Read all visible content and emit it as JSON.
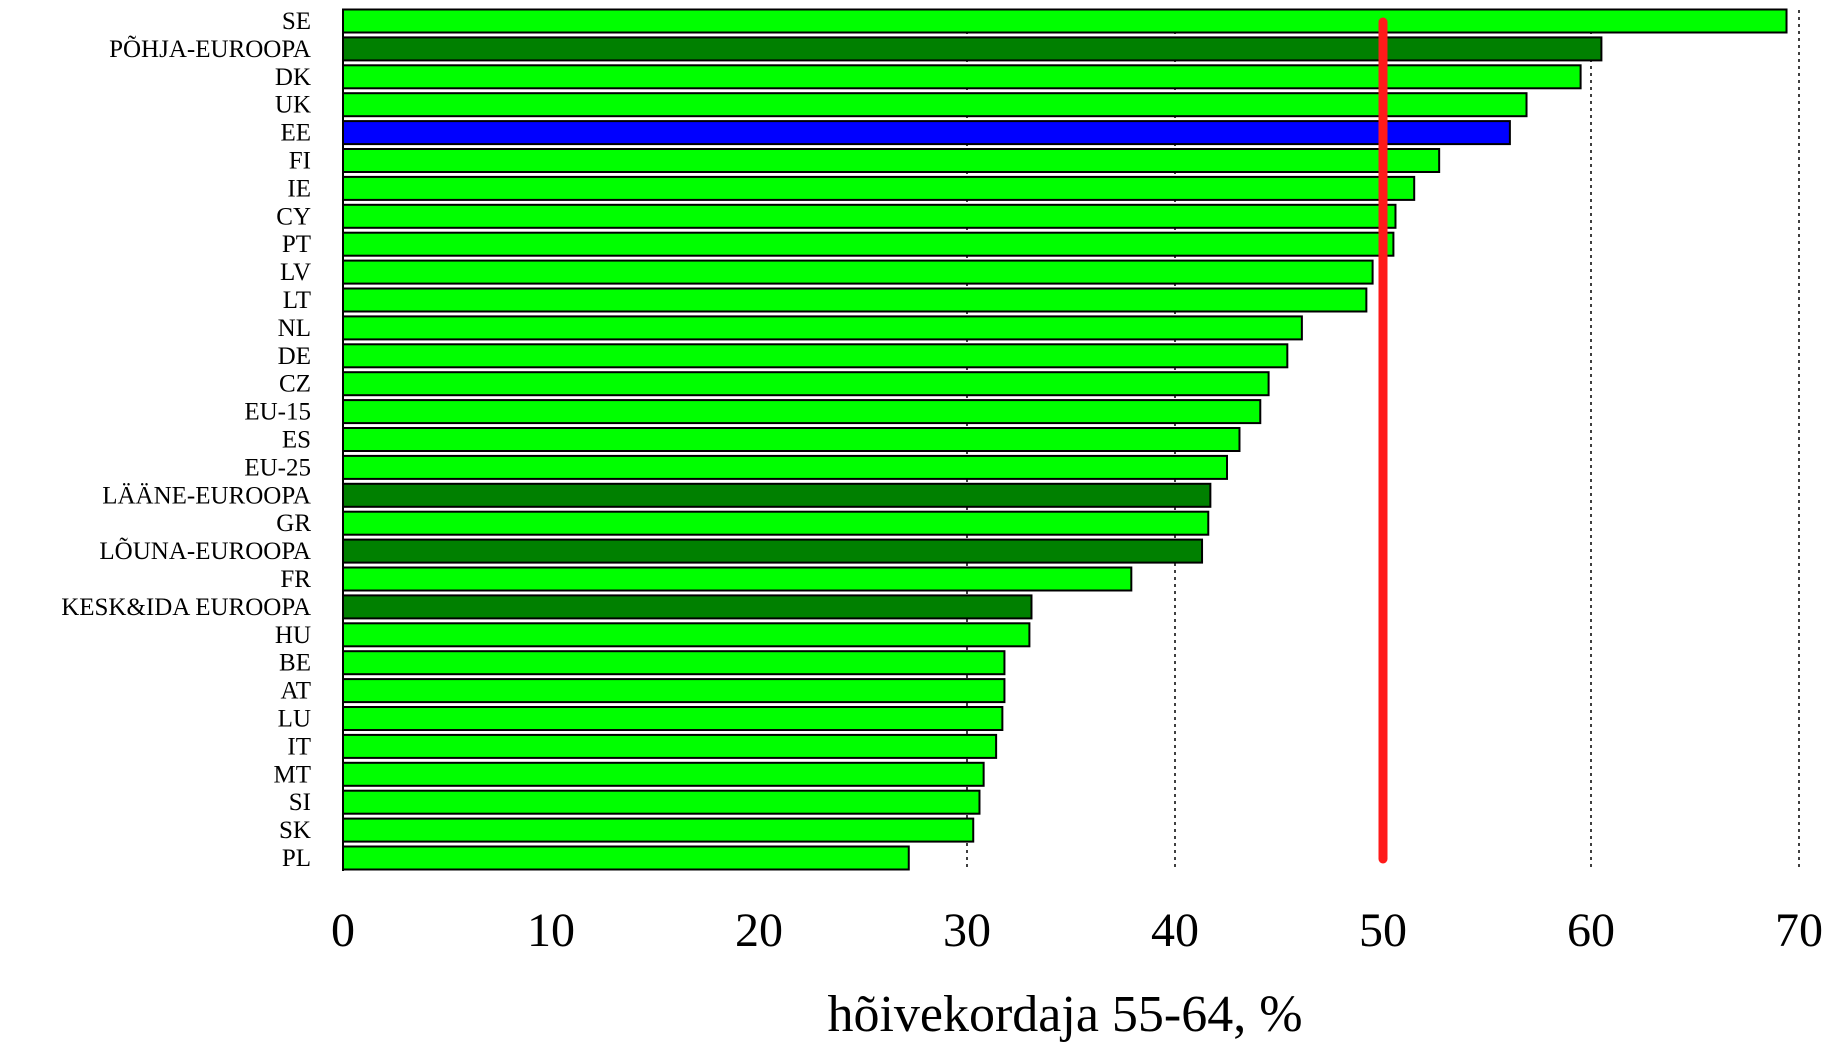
{
  "chart_data": {
    "type": "bar",
    "orientation": "horizontal",
    "title": "",
    "xlabel": "hõivekordaja 55-64, %",
    "ylabel": "",
    "xlim": [
      0,
      70
    ],
    "xticks": [
      0,
      10,
      20,
      30,
      40,
      50,
      60,
      70
    ],
    "gridlines": [
      30,
      40,
      60,
      70
    ],
    "reference_line": {
      "value": 50,
      "color": "#ff1a1a"
    },
    "colors": {
      "country": "#00ff00",
      "region": "#008000",
      "highlight": "#0000ff"
    },
    "categories": [
      "SE",
      "PÕHJA-EUROOPA",
      "DK",
      "UK",
      "EE",
      "FI",
      "IE",
      "CY",
      "PT",
      "LV",
      "LT",
      "NL",
      "DE",
      "CZ",
      "EU-15",
      "ES",
      "EU-25",
      "LÄÄNE-EUROOPA",
      "GR",
      "LÕUNA-EUROOPA",
      "FR",
      "KESK&IDA EUROOPA",
      "HU",
      "BE",
      "AT",
      "LU",
      "IT",
      "MT",
      "SI",
      "SK",
      "PL"
    ],
    "values": [
      69.4,
      60.5,
      59.5,
      56.9,
      56.1,
      52.7,
      51.5,
      50.6,
      50.5,
      49.5,
      49.2,
      46.1,
      45.4,
      44.5,
      44.1,
      43.1,
      42.5,
      41.7,
      41.6,
      41.3,
      37.9,
      33.1,
      33.0,
      31.8,
      31.8,
      31.7,
      31.4,
      30.8,
      30.6,
      30.3,
      27.2
    ],
    "bar_types": [
      "country",
      "region",
      "country",
      "country",
      "highlight",
      "country",
      "country",
      "country",
      "country",
      "country",
      "country",
      "country",
      "country",
      "country",
      "country",
      "country",
      "country",
      "region",
      "country",
      "region",
      "country",
      "region",
      "country",
      "country",
      "country",
      "country",
      "country",
      "country",
      "country",
      "country",
      "country"
    ]
  }
}
